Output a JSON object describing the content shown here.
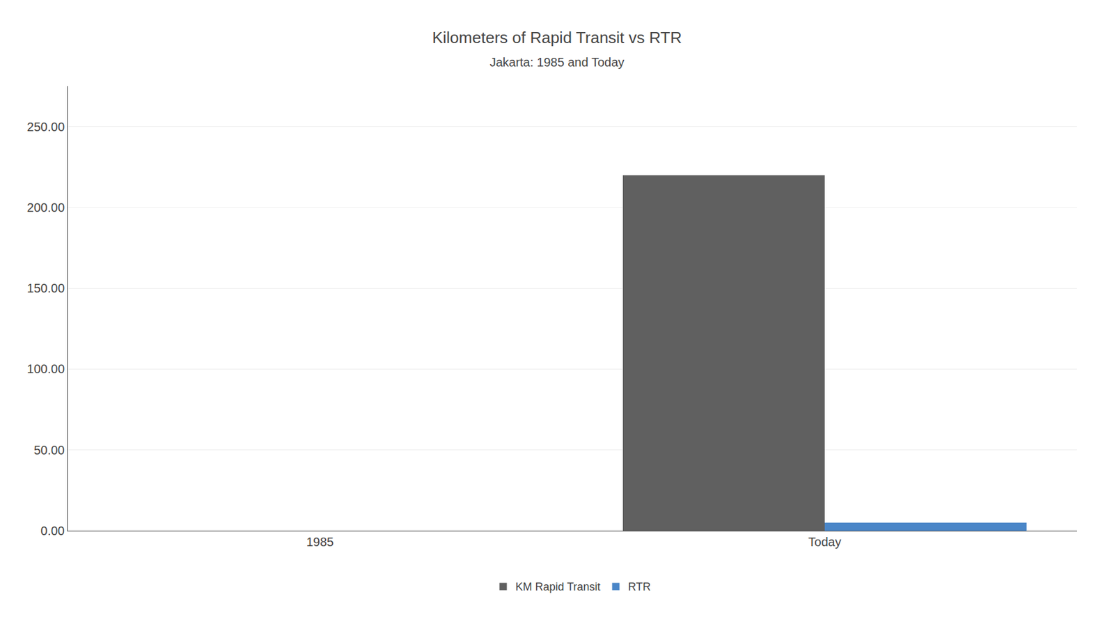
{
  "chart_data": {
    "type": "bar",
    "title": "Kilometers of Rapid Transit vs RTR",
    "subtitle": "Jakarta: 1985 and Today",
    "categories": [
      "1985",
      "Today"
    ],
    "series": [
      {
        "name": "KM Rapid Transit",
        "color": "#606060",
        "values": [
          0,
          220
        ]
      },
      {
        "name": "RTR",
        "color": "#4a86c8",
        "values": [
          0,
          5
        ]
      }
    ],
    "ylim": [
      0,
      275
    ],
    "yticks": [
      {
        "value": 0,
        "label": "0.00"
      },
      {
        "value": 50,
        "label": "50.00"
      },
      {
        "value": 100,
        "label": "100.00"
      },
      {
        "value": 150,
        "label": "150.00"
      },
      {
        "value": 200,
        "label": "200.00"
      },
      {
        "value": 250,
        "label": "250.00"
      }
    ],
    "grid": true,
    "legend": "bottom"
  }
}
